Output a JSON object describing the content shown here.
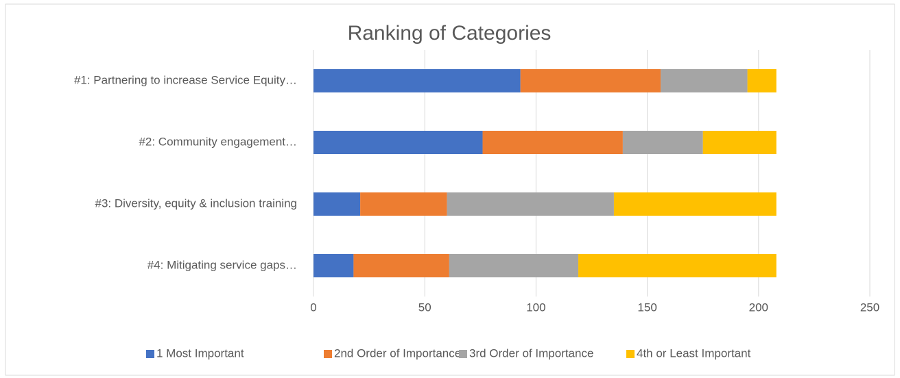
{
  "chart_data": {
    "type": "stacked_bar_horizontal",
    "title": "Ranking of Categories",
    "categories": [
      "#1: Partnering to increase Service Equity…",
      "#2: Community engagement…",
      "#3: Diversity, equity & inclusion training",
      "#4: Mitigating service gaps…"
    ],
    "series": [
      {
        "name": "1 Most Important",
        "color": "#4472c4",
        "values": [
          93,
          76,
          21,
          18
        ]
      },
      {
        "name": "2nd Order of Importance",
        "color": "#ed7d31",
        "values": [
          63,
          63,
          39,
          43
        ]
      },
      {
        "name": "3rd Order of Importance",
        "color": "#a5a5a5",
        "values": [
          39,
          36,
          75,
          58
        ]
      },
      {
        "name": "4th or Least Important",
        "color": "#ffc000",
        "values": [
          13,
          33,
          73,
          89
        ]
      }
    ],
    "xlim": [
      0,
      250
    ],
    "xticks": [
      0,
      50,
      100,
      150,
      200,
      250
    ],
    "grid": true,
    "legend": "bottom"
  }
}
